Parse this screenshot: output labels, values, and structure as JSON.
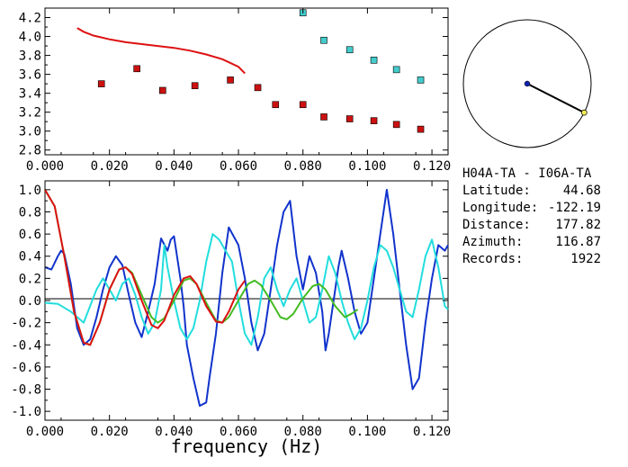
{
  "station_pair": "H04A-TA - I06A-TA",
  "info": [
    {
      "label": "Latitude:",
      "value": "44.68"
    },
    {
      "label": "Longitude:",
      "value": "-122.19"
    },
    {
      "label": "Distance:",
      "value": "177.82"
    },
    {
      "label": "Azimuth:",
      "value": "116.87"
    },
    {
      "label": "Records:",
      "value": "1922"
    }
  ],
  "compass": {
    "azimuth_deg": 116.87
  },
  "chart_data": [
    {
      "type": "scatter",
      "xlabel": "",
      "ylabel": "",
      "xlim": [
        0.0,
        0.125
      ],
      "ylim": [
        2.75,
        4.3
      ],
      "xticks": [
        "0.000",
        "0.020",
        "0.040",
        "0.060",
        "0.080",
        "0.100",
        "0.120"
      ],
      "yticks": [
        "2.8",
        "3.0",
        "3.2",
        "3.4",
        "3.6",
        "3.8",
        "4.0",
        "4.2"
      ],
      "colors": {
        "curve": "#dd1111",
        "red_marker": "#cc1111",
        "cyan_marker": "#44cccc"
      },
      "curve": {
        "x": [
          0.01,
          0.012,
          0.015,
          0.02,
          0.025,
          0.03,
          0.035,
          0.04,
          0.045,
          0.05,
          0.055,
          0.06,
          0.062
        ],
        "y": [
          4.09,
          4.05,
          4.01,
          3.97,
          3.94,
          3.92,
          3.9,
          3.88,
          3.85,
          3.81,
          3.76,
          3.68,
          3.61
        ]
      },
      "red_points": {
        "x": [
          0.0175,
          0.0285,
          0.0365,
          0.0465,
          0.0575,
          0.066,
          0.0715,
          0.08,
          0.0865,
          0.0945,
          0.102,
          0.109,
          0.1165
        ],
        "y": [
          3.5,
          3.66,
          3.43,
          3.48,
          3.54,
          3.46,
          3.28,
          3.28,
          3.15,
          3.13,
          3.11,
          3.07,
          3.02
        ]
      },
      "cyan_points": {
        "x": [
          0.08,
          0.0865,
          0.0945,
          0.102,
          0.109,
          0.1165
        ],
        "y": [
          4.25,
          3.96,
          3.86,
          3.75,
          3.65,
          3.54
        ]
      }
    },
    {
      "type": "line",
      "xlabel": "frequency (Hz)",
      "ylabel": "",
      "xlim": [
        0.0,
        0.125
      ],
      "ylim": [
        -1.08,
        1.08
      ],
      "xticks": [
        "0.000",
        "0.020",
        "0.040",
        "0.060",
        "0.080",
        "0.100",
        "0.120"
      ],
      "yticks": [
        "1.0",
        "0.8",
        "0.6",
        "0.4",
        "0.2",
        "0.0",
        "-0.2",
        "-0.4",
        "-0.6",
        "-0.8",
        "-1.0"
      ],
      "series": [
        {
          "color": "#1133cc",
          "x": [
            0.0,
            0.002,
            0.004,
            0.005,
            0.006,
            0.008,
            0.01,
            0.012,
            0.014,
            0.016,
            0.018,
            0.02,
            0.022,
            0.024,
            0.026,
            0.028,
            0.03,
            0.032,
            0.034,
            0.036,
            0.038,
            0.039,
            0.04,
            0.042,
            0.043,
            0.044,
            0.046,
            0.048,
            0.05,
            0.051,
            0.053,
            0.055,
            0.057,
            0.06,
            0.062,
            0.064,
            0.066,
            0.068,
            0.07,
            0.072,
            0.074,
            0.076,
            0.078,
            0.08,
            0.082,
            0.084,
            0.086,
            0.087,
            0.088,
            0.09,
            0.091,
            0.092,
            0.094,
            0.096,
            0.098,
            0.1,
            0.102,
            0.104,
            0.106,
            0.108,
            0.11,
            0.112,
            0.114,
            0.116,
            0.118,
            0.12,
            0.122,
            0.124,
            0.125
          ],
          "y": [
            0.3,
            0.28,
            0.4,
            0.45,
            0.42,
            0.15,
            -0.25,
            -0.4,
            -0.35,
            -0.15,
            0.1,
            0.3,
            0.4,
            0.32,
            0.05,
            -0.2,
            -0.33,
            -0.1,
            0.15,
            0.56,
            0.45,
            0.55,
            0.58,
            0.2,
            -0.05,
            -0.4,
            -0.7,
            -0.95,
            -0.92,
            -0.7,
            -0.3,
            0.25,
            0.66,
            0.5,
            0.2,
            -0.2,
            -0.45,
            -0.3,
            0.1,
            0.5,
            0.8,
            0.9,
            0.4,
            0.1,
            0.4,
            0.25,
            -0.1,
            -0.45,
            -0.3,
            0.1,
            0.3,
            0.45,
            0.2,
            -0.1,
            -0.3,
            -0.2,
            0.2,
            0.6,
            1.0,
            0.6,
            0.1,
            -0.4,
            -0.8,
            -0.7,
            -0.2,
            0.2,
            0.5,
            0.45,
            0.5
          ]
        },
        {
          "color": "#22dddd",
          "x": [
            0.0,
            0.004,
            0.008,
            0.012,
            0.016,
            0.018,
            0.02,
            0.022,
            0.024,
            0.026,
            0.028,
            0.03,
            0.032,
            0.034,
            0.036,
            0.037,
            0.038,
            0.04,
            0.042,
            0.044,
            0.046,
            0.048,
            0.05,
            0.052,
            0.054,
            0.056,
            0.058,
            0.06,
            0.062,
            0.064,
            0.066,
            0.068,
            0.07,
            0.072,
            0.074,
            0.076,
            0.078,
            0.08,
            0.082,
            0.084,
            0.086,
            0.088,
            0.09,
            0.092,
            0.094,
            0.096,
            0.098,
            0.1,
            0.102,
            0.104,
            0.106,
            0.108,
            0.11,
            0.112,
            0.114,
            0.116,
            0.118,
            0.12,
            0.122,
            0.124,
            0.125
          ],
          "y": [
            -0.02,
            -0.03,
            -0.1,
            -0.2,
            0.1,
            0.2,
            0.1,
            0.0,
            0.15,
            0.2,
            0.05,
            -0.15,
            -0.3,
            -0.2,
            0.1,
            0.5,
            0.3,
            0.0,
            -0.25,
            -0.35,
            -0.25,
            0.0,
            0.35,
            0.6,
            0.55,
            0.45,
            0.35,
            0.0,
            -0.3,
            -0.4,
            -0.15,
            0.2,
            0.3,
            0.1,
            -0.05,
            0.1,
            0.2,
            0.0,
            -0.2,
            -0.15,
            0.1,
            0.4,
            0.25,
            0.0,
            -0.2,
            -0.35,
            -0.25,
            0.0,
            0.3,
            0.5,
            0.45,
            0.3,
            0.1,
            -0.1,
            -0.15,
            0.1,
            0.4,
            0.55,
            0.3,
            -0.05,
            -0.08
          ]
        },
        {
          "color": "#44bb22",
          "x": [
            0.0,
            0.003,
            0.006,
            0.009,
            0.012,
            0.014,
            0.017,
            0.02,
            0.023,
            0.025,
            0.027,
            0.03,
            0.033,
            0.035,
            0.037,
            0.04,
            0.043,
            0.045,
            0.047,
            0.05,
            0.053,
            0.055,
            0.057,
            0.06,
            0.063,
            0.065,
            0.067,
            0.07,
            0.073,
            0.075,
            0.077,
            0.08,
            0.083,
            0.085,
            0.087,
            0.09,
            0.093,
            0.095,
            0.097
          ],
          "y": [
            1.0,
            0.85,
            0.4,
            -0.1,
            -0.38,
            -0.4,
            -0.2,
            0.1,
            0.28,
            0.3,
            0.25,
            0.05,
            -0.15,
            -0.2,
            -0.16,
            0.0,
            0.18,
            0.2,
            0.15,
            -0.02,
            -0.18,
            -0.2,
            -0.15,
            0.0,
            0.15,
            0.18,
            0.14,
            0.0,
            -0.15,
            -0.17,
            -0.12,
            0.02,
            0.13,
            0.15,
            0.1,
            -0.05,
            -0.15,
            -0.12,
            -0.08
          ]
        },
        {
          "color": "#dd1111",
          "x": [
            0.0,
            0.003,
            0.006,
            0.009,
            0.012,
            0.014,
            0.017,
            0.02,
            0.023,
            0.025,
            0.027,
            0.03,
            0.033,
            0.035,
            0.037,
            0.04,
            0.043,
            0.045,
            0.047,
            0.05,
            0.053,
            0.055,
            0.057,
            0.06,
            0.062
          ],
          "y": [
            1.0,
            0.85,
            0.4,
            -0.1,
            -0.38,
            -0.4,
            -0.2,
            0.1,
            0.28,
            0.3,
            0.24,
            0.0,
            -0.22,
            -0.25,
            -0.18,
            0.05,
            0.2,
            0.22,
            0.15,
            -0.05,
            -0.19,
            -0.2,
            -0.1,
            0.1,
            0.18
          ]
        }
      ]
    }
  ]
}
